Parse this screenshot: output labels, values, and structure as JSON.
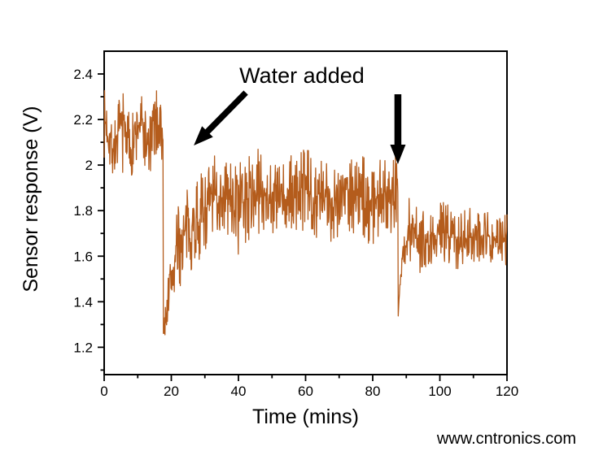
{
  "page": {
    "background": "#ffffff",
    "watermark": {
      "text": "www.cntronics.com",
      "color": "#c9e6b4"
    }
  },
  "chart_data": {
    "type": "line",
    "title": "",
    "xlabel": "Time (mins)",
    "ylabel": "Sensor response (V)",
    "xlim": [
      0,
      120
    ],
    "ylim": [
      1.08,
      2.5
    ],
    "grid": false,
    "legend": false,
    "line_color": "#b45c1c",
    "x_ticks": [
      {
        "label": "0",
        "value": 0
      },
      {
        "label": "20",
        "value": 20
      },
      {
        "label": "40",
        "value": 40
      },
      {
        "label": "60",
        "value": 60
      },
      {
        "label": "80",
        "value": 80
      },
      {
        "label": "100",
        "value": 100
      },
      {
        "label": "120",
        "value": 120
      }
    ],
    "x_minor_ticks": [
      10,
      30,
      50,
      70,
      90,
      110
    ],
    "y_ticks": [
      {
        "label": "2.4",
        "value": 2.4
      },
      {
        "label": "2.2",
        "value": 2.2
      },
      {
        "label": "2",
        "value": 2.0
      },
      {
        "label": "1.8",
        "value": 1.8
      },
      {
        "label": "1.6",
        "value": 1.6
      },
      {
        "label": "1.4",
        "value": 1.4
      },
      {
        "label": "1.2",
        "value": 1.2
      }
    ],
    "y_minor_ticks": [
      2.3,
      2.1,
      1.9,
      1.7,
      1.5,
      1.3,
      1.1
    ],
    "annotation": {
      "text": "Water added",
      "text_pos": {
        "t": 58.9,
        "v": 2.393
      },
      "arrow_color": "#000000",
      "arrows": [
        {
          "from": {
            "t": 42.2,
            "v": 2.318
          },
          "to": {
            "t": 26.7,
            "v": 2.086
          },
          "line_width": 7.5
        },
        {
          "from": {
            "t": 87.5,
            "v": 2.311
          },
          "to": {
            "t": 87.5,
            "v": 2.004
          },
          "line_width": 8.5
        }
      ]
    },
    "events": [
      {
        "name": "water added (first)",
        "time_min": 17.5,
        "response_drops_to_v": 1.23
      },
      {
        "name": "water added (second)",
        "time_min": 87.6,
        "response_drops_to_v": 1.33
      }
    ],
    "series": [
      {
        "name": "sensor response",
        "summary_points": [
          [
            0,
            2.15
          ],
          [
            5,
            2.1
          ],
          [
            10,
            2.12
          ],
          [
            15,
            2.13
          ],
          [
            17.4,
            2.16
          ],
          [
            17.6,
            1.23
          ],
          [
            19,
            1.4
          ],
          [
            21,
            1.55
          ],
          [
            24,
            1.68
          ],
          [
            28,
            1.8
          ],
          [
            35,
            1.87
          ],
          [
            45,
            1.86
          ],
          [
            55,
            1.87
          ],
          [
            65,
            1.86
          ],
          [
            75,
            1.87
          ],
          [
            85,
            1.9
          ],
          [
            87.5,
            1.95
          ],
          [
            88,
            1.33
          ],
          [
            89,
            1.5
          ],
          [
            90,
            1.62
          ],
          [
            95,
            1.7
          ],
          [
            100,
            1.69
          ],
          [
            110,
            1.7
          ],
          [
            120,
            1.67
          ]
        ],
        "noise_model": {
          "dt": 0.12,
          "seed": 7,
          "segments": [
            {
              "t0": 0,
              "t1": 17.52,
              "base": 2.13,
              "noise": 0.07,
              "wander_amp": 0.055,
              "wander_period": 5.2,
              "wander_phase": 1.2
            },
            {
              "t0": 17.52,
              "t1": 87.6,
              "base": 1.865,
              "noise": 0.085,
              "wander_amp": 0.025,
              "wander_period": 13,
              "wander_phase": 0,
              "dip": {
                "min": 1.23,
                "tau": 5
              }
            },
            {
              "t0": 87.6,
              "t1": 120,
              "base": 1.69,
              "noise": 0.06,
              "wander_amp": 0.02,
              "wander_period": 11,
              "wander_phase": 0.5,
              "dip": {
                "min": 1.33,
                "tau": 1.2
              }
            }
          ]
        }
      }
    ]
  }
}
